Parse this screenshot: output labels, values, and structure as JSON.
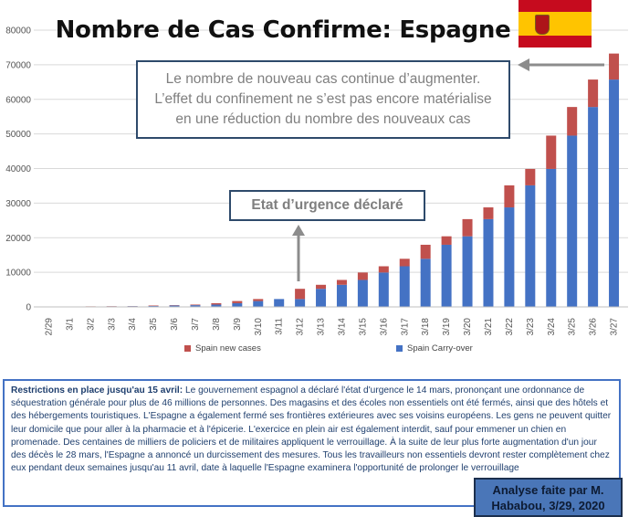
{
  "title": "Nombre de Cas Confirme: Espagne",
  "callout_top": {
    "lines": [
      "Le nombre de nouveau cas continue d’augmenter.",
      "L’effet du confinement ne s’est pas encore matérialise",
      "en une réduction du nombre des nouveaux cas"
    ]
  },
  "callout_mid": "Etat d’urgence déclaré",
  "info": {
    "heading": "Restrictions en place jusqu'au  15 avril:",
    "body": " Le gouvernement espagnol a déclaré l'état d'urgence le 14 mars, prononçant une ordonnance de séquestration générale pour plus de 46 millions de personnes. Des magasins et des écoles non essentiels ont été fermés, ainsi que des hôtels et des hébergements touristiques. L'Espagne a également fermé ses frontières extérieures avec ses voisins européens. Les gens ne peuvent quitter leur domicile que pour aller à la pharmacie et à l'épicerie. L'exercice en plein air est également interdit, sauf pour emmener un chien en promenade. Des centaines de milliers de policiers et de militaires appliquent le verrouillage. À la suite de leur plus forte augmentation d'un jour des décès le 28 mars, l'Espagne a annoncé un durcissement des mesures. Tous les travailleurs non essentiels devront rester complètement chez eux pendant deux semaines jusqu'au 11 avril, date à laquelle l'Espagne examinera l'opportunité de prolonger le verrouillage"
  },
  "credit": {
    "line1": "Analyse faite par M.",
    "line2": "Hababou, 3/29, 2020"
  },
  "colors": {
    "carry_over": "#4472c4",
    "new_cases": "#c0504d",
    "flag_red": "#c60b1e",
    "flag_yellow": "#ffc400",
    "box_border": "#2e4a6b",
    "arrow": "#8c8c8c"
  },
  "flag_icon": "spain-flag-icon",
  "chart_data": {
    "type": "bar",
    "stacked": true,
    "categories": [
      "2/29",
      "3/1",
      "3/2",
      "3/3",
      "3/4",
      "3/5",
      "3/6",
      "3/7",
      "3/8",
      "3/9",
      "3/10",
      "3/11",
      "3/12",
      "3/13",
      "3/14",
      "3/15",
      "3/16",
      "3/17",
      "3/18",
      "3/19",
      "3/20",
      "3/21",
      "3/22",
      "3/23",
      "3/24",
      "3/25",
      "3/26",
      "3/27"
    ],
    "series": [
      {
        "name": "Spain Carry-over",
        "color": "#4472c4",
        "values": [
          45,
          84,
          120,
          165,
          222,
          259,
          400,
          500,
          673,
          1073,
          1695,
          2277,
          2277,
          5232,
          6391,
          7798,
          9942,
          11748,
          13910,
          17963,
          20410,
          25374,
          28768,
          35136,
          39885,
          49515,
          57786,
          65719
        ]
      },
      {
        "name": "Spain new cases",
        "color": "#c0504d",
        "values": [
          39,
          36,
          45,
          57,
          37,
          141,
          100,
          173,
          400,
          622,
          582,
          0,
          2955,
          1159,
          1407,
          2144,
          1806,
          2162,
          4053,
          2447,
          4964,
          3394,
          6368,
          4749,
          9630,
          8271,
          7933,
          7516
        ]
      }
    ],
    "ylim": [
      0,
      80000
    ],
    "yticks": [
      0,
      10000,
      20000,
      30000,
      40000,
      50000,
      60000,
      70000,
      80000
    ],
    "grid": true,
    "legend_position": "bottom"
  }
}
